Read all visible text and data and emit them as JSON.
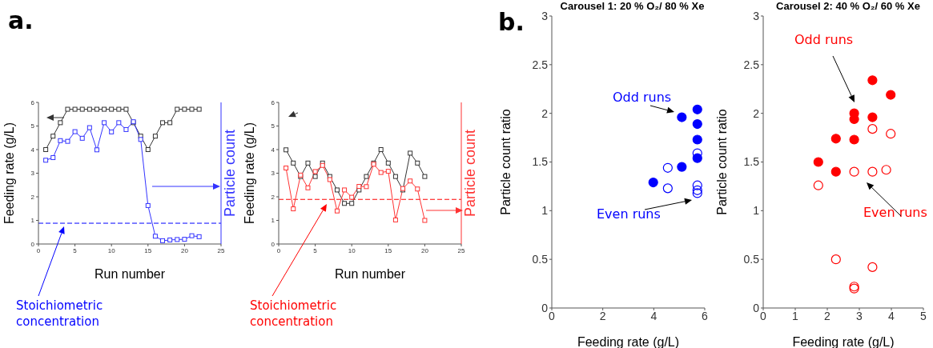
{
  "chart_data": [
    {
      "type": "line",
      "xlabel": "Run number",
      "ylabel": "Feeding rate (g/L)",
      "y2label": "Particle count",
      "marker": "square",
      "annotations": [
        "a."
      ],
      "x": [
        1,
        2,
        3,
        4,
        5,
        6,
        7,
        8,
        9,
        10,
        11,
        12,
        13,
        14,
        15,
        16,
        17,
        18,
        19,
        20,
        21,
        22
      ],
      "xlim": [
        0,
        25
      ],
      "xticks": [
        0,
        5,
        10,
        15,
        20,
        25
      ],
      "ylim": [
        0,
        6
      ],
      "yticks": [
        0,
        1,
        2,
        3,
        4,
        5,
        6
      ],
      "ref_lines": [
        {
          "axis": "y",
          "value": 0.88,
          "label": "Stoichiometric concentration",
          "color": "#0000ff",
          "line_style": "dashed"
        }
      ],
      "series": [
        {
          "color": "#333333",
          "values": [
            4.0,
            4.57,
            5.14,
            5.71,
            5.71,
            5.71,
            5.71,
            5.71,
            5.71,
            5.71,
            5.71,
            5.71,
            5.14,
            4.57,
            4.0,
            4.57,
            5.14,
            5.14,
            5.71,
            5.71,
            5.71,
            5.71
          ]
        },
        {
          "color": "#3333ff",
          "values": [
            3.55,
            3.66,
            4.38,
            4.35,
            4.76,
            4.48,
            4.93,
            3.99,
            5.14,
            4.75,
            5.14,
            4.85,
            5.18,
            4.43,
            1.63,
            0.33,
            0.14,
            0.17,
            0.19,
            0.2,
            0.35,
            0.31
          ]
        }
      ]
    },
    {
      "type": "line",
      "xlabel": "Run number",
      "ylabel": "Feeding rate (g/L)",
      "y2label": "Particle count",
      "marker": "square",
      "x": [
        1,
        2,
        3,
        4,
        5,
        6,
        7,
        8,
        9,
        10,
        11,
        12,
        13,
        14,
        15,
        16,
        17,
        18,
        19,
        20
      ],
      "xlim": [
        0,
        25
      ],
      "xticks": [
        0,
        5,
        10,
        15,
        20,
        25
      ],
      "ylim": [
        0,
        6
      ],
      "yticks": [
        0,
        1,
        2,
        3,
        4,
        5,
        6
      ],
      "ref_lines": [
        {
          "axis": "y",
          "value": 1.89,
          "label": "Stoichiometric concentration",
          "color": "#ff0000",
          "line_style": "dashed"
        }
      ],
      "series": [
        {
          "color": "#333333",
          "values": [
            3.99,
            3.43,
            2.86,
            3.43,
            2.86,
            3.43,
            2.86,
            2.29,
            1.72,
            1.72,
            2.29,
            2.86,
            3.43,
            4.0,
            3.43,
            2.86,
            2.29,
            3.85,
            3.43,
            2.86
          ]
        },
        {
          "color": "#ff3333",
          "values": [
            3.22,
            1.49,
            2.92,
            2.38,
            3.07,
            3.33,
            2.73,
            1.4,
            2.29,
            1.98,
            2.44,
            2.43,
            3.38,
            3.03,
            3.08,
            1.02,
            2.35,
            2.67,
            2.33,
            1.0
          ]
        }
      ]
    },
    {
      "type": "scatter",
      "title": "Carousel 1: 20 % O₂/ 80 % Xe",
      "xlabel": "Feeding rate (g/L)",
      "ylabel": "Particle count ratio",
      "marker": "circle",
      "annotations": [
        "b."
      ],
      "xlim": [
        0,
        6
      ],
      "xticks": [
        0,
        2,
        4,
        6
      ],
      "ylim": [
        0,
        3
      ],
      "yticks": [
        0,
        0.5,
        1,
        1.5,
        2,
        2.5,
        3
      ],
      "series": [
        {
          "name": "Odd runs",
          "color": "#0000ff",
          "x": [
            3.98,
            5.1,
            5.71,
            5.71,
            5.71,
            5.71,
            5.1
          ],
          "values": [
            1.29,
            1.96,
            2.04,
            1.89,
            1.73,
            1.54,
            1.45
          ]
        },
        {
          "name": "Even runs",
          "color": "#0000ff",
          "x": [
            4.55,
            4.55,
            5.71,
            5.71,
            5.71,
            5.71
          ],
          "values": [
            1.44,
            1.23,
            1.59,
            1.26,
            1.21,
            1.18
          ]
        }
      ]
    },
    {
      "type": "scatter",
      "title": "Carousel 2: 40 % O₂/ 60 % Xe",
      "xlabel": "Feeding rate (g/L)",
      "ylabel": "Particle count ratio",
      "marker": "circle",
      "xlim": [
        0,
        5
      ],
      "xticks": [
        0,
        1,
        2,
        3,
        4,
        5
      ],
      "ylim": [
        0,
        3
      ],
      "yticks": [
        0,
        0.5,
        1,
        1.5,
        2,
        2.5,
        3
      ],
      "series": [
        {
          "name": "Odd runs",
          "color": "#ff0000",
          "x": [
            1.72,
            2.27,
            2.27,
            2.84,
            2.84,
            2.84,
            3.41,
            3.41,
            3.98
          ],
          "values": [
            1.5,
            1.74,
            1.4,
            2.0,
            1.94,
            1.73,
            2.34,
            1.96,
            2.19
          ]
        },
        {
          "name": "Even runs",
          "color": "#ff0000",
          "x": [
            1.72,
            2.27,
            2.84,
            2.84,
            2.84,
            3.41,
            3.41,
            3.41,
            3.84,
            3.98
          ],
          "values": [
            1.26,
            0.5,
            1.4,
            0.22,
            0.2,
            1.84,
            1.4,
            0.42,
            1.42,
            1.79
          ]
        }
      ]
    }
  ]
}
